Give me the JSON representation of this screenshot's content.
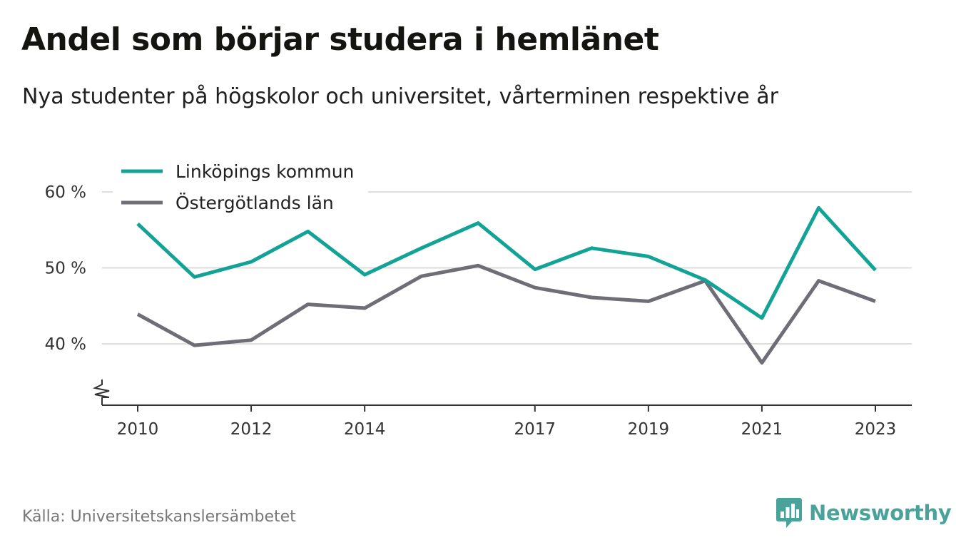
{
  "title": "Andel som börjar studera i hemlänet",
  "subtitle": "Nya studenter på högskolor och universitet, vårterminen respektive år",
  "source": "Källa: Universitetskanslersämbetet",
  "brand": "Newsworthy",
  "brand_icon": "newsworthy-bar-chart-icon",
  "colors": {
    "linkoping": "#13a396",
    "ostergotland": "#6f6e76",
    "grid": "#dddddd",
    "axis": "#333333",
    "brand": "#4aa39a"
  },
  "chart_data": {
    "type": "line",
    "title": "Andel som börjar studera i hemlänet",
    "xlabel": "",
    "ylabel": "",
    "x": [
      2010,
      2011,
      2012,
      2013,
      2014,
      2015,
      2016,
      2017,
      2018,
      2019,
      2020,
      2021,
      2022,
      2023
    ],
    "x_tick_labels": [
      "2010",
      "2012",
      "2014",
      "2017",
      "2019",
      "2021",
      "2023"
    ],
    "y_tick_values": [
      40,
      50,
      60
    ],
    "y_tick_labels": [
      "40 %",
      "50 %",
      "60 %"
    ],
    "ylim": [
      32,
      60
    ],
    "axis_break": true,
    "grid": true,
    "legend_position": "top-left",
    "series": [
      {
        "name": "Linköpings kommun",
        "color": "#13a396",
        "values": [
          55.8,
          48.8,
          50.8,
          54.8,
          49.1,
          52.6,
          55.9,
          49.8,
          52.6,
          51.5,
          48.4,
          43.4,
          57.9,
          49.7
        ]
      },
      {
        "name": "Östergötlands län",
        "color": "#6f6e76",
        "values": [
          43.9,
          39.8,
          40.5,
          45.2,
          44.7,
          48.9,
          50.3,
          47.4,
          46.1,
          45.6,
          48.3,
          37.5,
          48.3,
          45.6
        ]
      }
    ]
  }
}
